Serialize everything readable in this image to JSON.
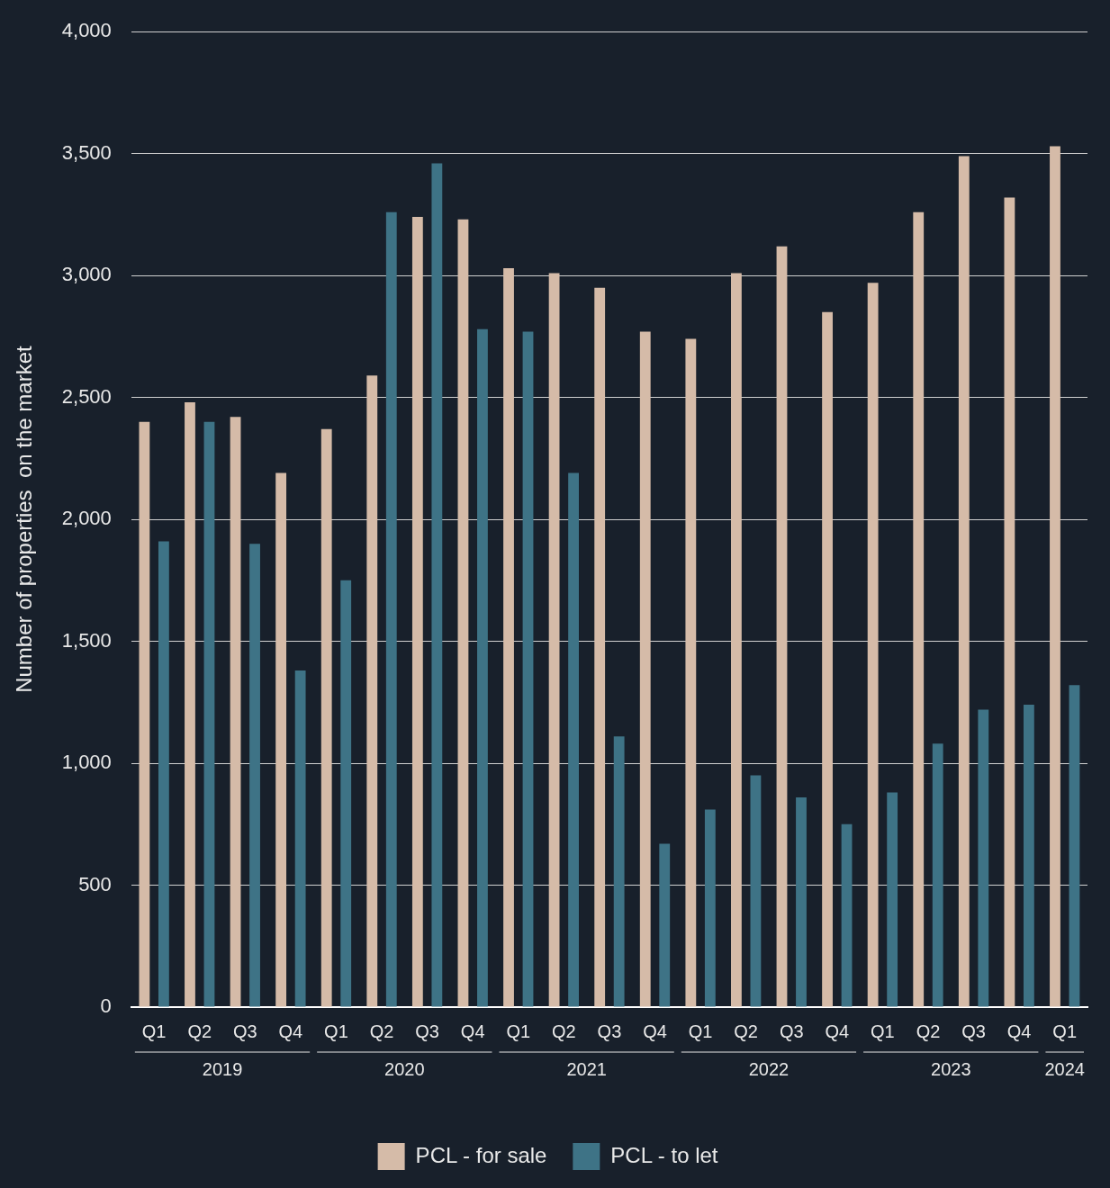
{
  "chart_data": {
    "type": "bar",
    "ylabel": "Number of properties  on the market",
    "categories": [
      "Q1",
      "Q2",
      "Q3",
      "Q4",
      "Q1",
      "Q2",
      "Q3",
      "Q4",
      "Q1",
      "Q2",
      "Q3",
      "Q4",
      "Q1",
      "Q2",
      "Q3",
      "Q4",
      "Q1",
      "Q2",
      "Q3",
      "Q4",
      "Q1"
    ],
    "series": [
      {
        "name": "PCL - for sale",
        "color": "#d5bba8",
        "values": [
          2400,
          2480,
          2420,
          2190,
          2370,
          2590,
          3240,
          3230,
          3030,
          3010,
          2950,
          2770,
          2740,
          3010,
          3120,
          2850,
          2970,
          3260,
          3490,
          3320,
          3530
        ]
      },
      {
        "name": "PCL - to let",
        "color": "#3e7386",
        "values": [
          1910,
          2400,
          1900,
          1380,
          1750,
          3260,
          3460,
          2780,
          2770,
          2190,
          1110,
          670,
          810,
          950,
          860,
          750,
          880,
          1080,
          1220,
          1240,
          1320
        ]
      }
    ],
    "ylim": [
      0,
      4000
    ],
    "yticks": [
      {
        "value": 0,
        "label": "0"
      },
      {
        "value": 500,
        "label": "500"
      },
      {
        "value": 1000,
        "label": "1,000"
      },
      {
        "value": 1500,
        "label": "1,500"
      },
      {
        "value": 2000,
        "label": "2,000"
      },
      {
        "value": 2500,
        "label": "2,500"
      },
      {
        "value": 3000,
        "label": "3,000"
      },
      {
        "value": 3500,
        "label": "3,500"
      },
      {
        "value": 4000,
        "label": "4,000"
      }
    ],
    "grid": "y",
    "legend": "bottom",
    "annotations": [
      "2019",
      "2020",
      "2021",
      "2022",
      "2023",
      "2024"
    ]
  }
}
